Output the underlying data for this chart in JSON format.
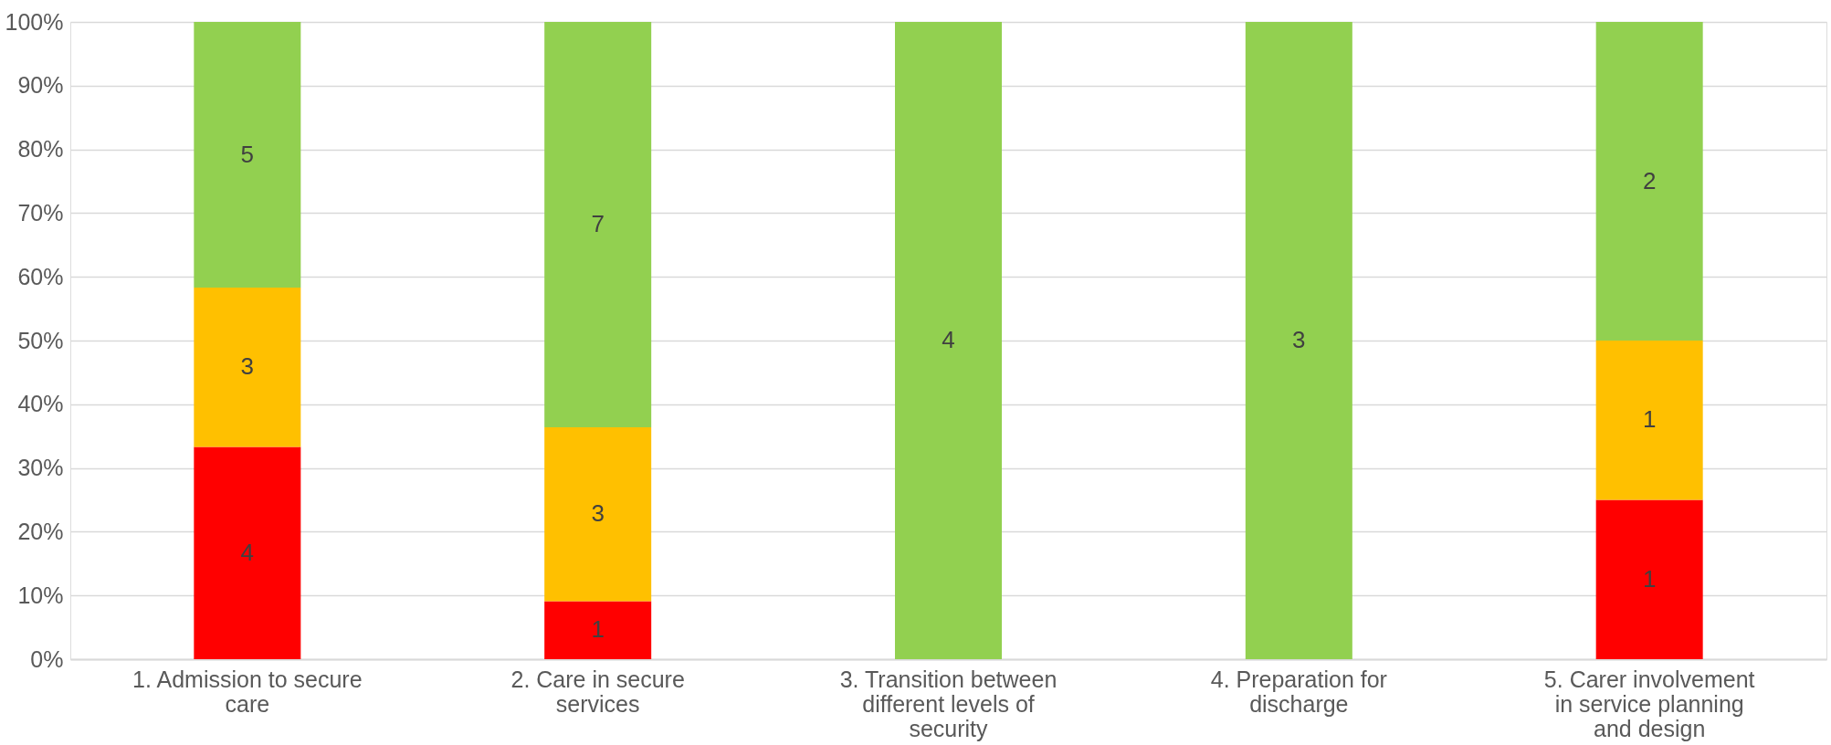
{
  "chart_data": {
    "type": "bar",
    "stacked": true,
    "categories": [
      "1. Admission to secure care",
      "2. Care in secure services",
      "3. Transition between different levels of security",
      "4. Preparation for discharge",
      "5. Carer involvement in service planning and design"
    ],
    "series": [
      {
        "color": "#ff0000",
        "values": [
          33.3,
          9.1,
          0,
          0,
          25
        ]
      },
      {
        "color": "#ffc000",
        "values": [
          25,
          27.3,
          0,
          0,
          25
        ]
      },
      {
        "color": "#92d050",
        "values": [
          41.7,
          63.6,
          100,
          100,
          50
        ]
      }
    ],
    "annotations": [
      "4",
      "3",
      "5",
      "1",
      "3",
      "7",
      "4",
      "3",
      "1",
      "1",
      "2"
    ],
    "ylim": [
      0,
      100
    ],
    "yticks": [
      {
        "value": 0,
        "label": "0%"
      },
      {
        "value": 10,
        "label": "10%"
      },
      {
        "value": 20,
        "label": "20%"
      },
      {
        "value": 30,
        "label": "30%"
      },
      {
        "value": 40,
        "label": "40%"
      },
      {
        "value": 50,
        "label": "50%"
      },
      {
        "value": 60,
        "label": "60%"
      },
      {
        "value": 70,
        "label": "70%"
      },
      {
        "value": 80,
        "label": "80%"
      },
      {
        "value": 90,
        "label": "90%"
      },
      {
        "value": 100,
        "label": "100%"
      }
    ],
    "grid": "y"
  }
}
